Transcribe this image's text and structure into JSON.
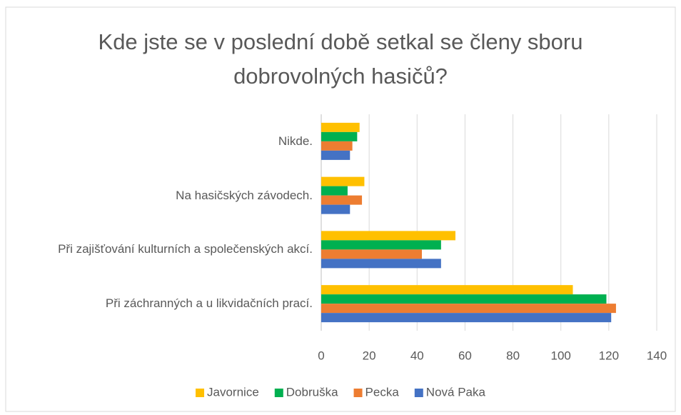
{
  "chart_data": {
    "type": "bar",
    "orientation": "horizontal",
    "title": "Kde jste se v poslední době setkal se členy sboru dobrovolných hasičů?",
    "categories": [
      "Nikde.",
      "Na hasičských závodech.",
      "Při zajišťování kulturních a společenských akcí.",
      "Při záchranných a u likvidačních prací."
    ],
    "series": [
      {
        "name": "Javornice",
        "color": "#ffc000",
        "values": [
          16,
          18,
          56,
          105
        ]
      },
      {
        "name": "Dobruška",
        "color": "#00b050",
        "values": [
          15,
          11,
          50,
          119
        ]
      },
      {
        "name": "Pecka",
        "color": "#ed7d31",
        "values": [
          13,
          17,
          42,
          123
        ]
      },
      {
        "name": "Nová Paka",
        "color": "#4472c4",
        "values": [
          12,
          12,
          50,
          121
        ]
      }
    ],
    "xlim": [
      0,
      140
    ],
    "xticks": [
      0,
      20,
      40,
      60,
      80,
      100,
      120,
      140
    ],
    "grid": true,
    "legend": "bottom"
  }
}
